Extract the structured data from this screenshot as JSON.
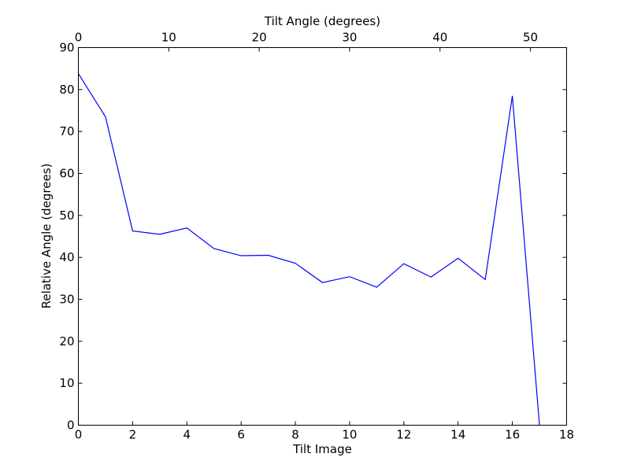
{
  "chart_data": {
    "type": "line",
    "xlabel": "Tilt Image",
    "x2label": "Tilt Angle (degrees)",
    "ylabel": "Relative Angle (degrees)",
    "xlim": [
      0,
      18
    ],
    "x2lim": [
      0,
      54
    ],
    "ylim": [
      0,
      90
    ],
    "x_ticks": [
      0,
      2,
      4,
      6,
      8,
      10,
      12,
      14,
      16,
      18
    ],
    "x2_ticks": [
      0,
      10,
      20,
      30,
      40,
      50
    ],
    "y_ticks": [
      0,
      10,
      20,
      30,
      40,
      50,
      60,
      70,
      80,
      90
    ],
    "grid": false,
    "line_color": "#0000ff",
    "series": [
      {
        "x": [
          0,
          1,
          2,
          3,
          4,
          5,
          6,
          7,
          8,
          9,
          10,
          11,
          12,
          13,
          14,
          15,
          16,
          17
        ],
        "values": [
          83.8,
          73.5,
          46.3,
          45.5,
          47.0,
          42.1,
          40.4,
          40.5,
          38.6,
          34.0,
          35.4,
          32.9,
          38.5,
          35.3,
          39.8,
          34.7,
          78.5,
          0.0
        ]
      }
    ]
  }
}
